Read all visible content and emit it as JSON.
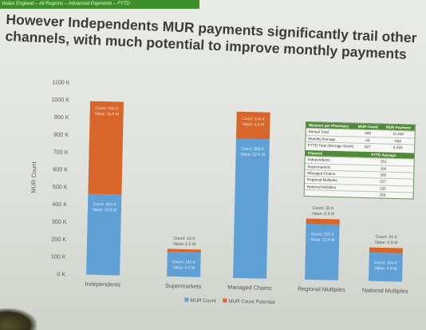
{
  "header": {
    "breadcrumb": "Wales England – All Regions – Advanced Payments – FYTD",
    "title_line1": "However Independents MUR payments significantly trail other",
    "title_line2": "channels, with much potential to improve monthly payments"
  },
  "colors": {
    "mur_count": "#5fa1d6",
    "mur_count_potential": "#d8662a",
    "table_header": "#4f8a36"
  },
  "chart_data": {
    "type": "bar",
    "stacked": true,
    "categories": [
      "Independents",
      "Supermarkets",
      "Managed Chains",
      "Regional Multiples",
      "National Multiples"
    ],
    "ylabel": "MUR Count",
    "ylim": [
      0,
      1100
    ],
    "yticks": [
      0,
      100,
      200,
      300,
      400,
      500,
      600,
      700,
      800,
      900,
      1000,
      1100
    ],
    "ytick_labels": [
      "0 K",
      "100 K",
      "200 K",
      "300 K",
      "400 K",
      "500 K",
      "600 K",
      "700 K",
      "800 K",
      "900 K",
      "1000 K",
      "1100 K"
    ],
    "series": [
      {
        "name": "MUR Count",
        "values": [
          463,
          142,
          800,
          320,
          164
        ],
        "labels": [
          {
            "count": "Count: 463 K",
            "value": "Value: 13.9 M"
          },
          {
            "count": "Count: 142 K",
            "value": "Value: 4.3 M"
          },
          {
            "count": "Count: 800 K",
            "value": "Value: 22 K M"
          },
          {
            "count": "Count: 320 K",
            "value": "Value: 10.4 M"
          },
          {
            "count": "Count: 164 K",
            "value": "Value: 4.9 M"
          }
        ]
      },
      {
        "name": "MUR Count Potential",
        "values": [
          532,
          16,
          154,
          30,
          29
        ],
        "labels": [
          {
            "count": "Count: 532 K",
            "value": "Value: 16.0 M"
          },
          {
            "count": "Count: 16 K",
            "value": "Value: 0.5 M"
          },
          {
            "count": "Count: 154 K",
            "value": "Value: 4.6 M"
          },
          {
            "count": "Count: 30 K",
            "value": "Value: 0.9 M"
          },
          {
            "count": "Count: 29 K",
            "value": "Value: 0.9 M"
          }
        ]
      }
    ],
    "legend": [
      "MUR Count",
      "MUR Count Potential"
    ],
    "legend_position": "bottom-center",
    "grid": false
  },
  "table": {
    "headers": [
      "Measure per Pharmacy",
      "MUR Count",
      "MUR Payment"
    ],
    "rows": [
      [
        "Annual Total",
        "400",
        "11,200"
      ],
      [
        "Monthly Average",
        "33",
        "933"
      ],
      [
        "FYTD Total (Average Stock)",
        "227",
        "6,133"
      ]
    ],
    "channel_header": [
      "Channel",
      "FYTD Average"
    ],
    "channel_rows": [
      [
        "Independents",
        "151"
      ],
      [
        "Supermarkets",
        "289"
      ],
      [
        "Managed Chains",
        "285"
      ],
      [
        "Regional Multiples",
        "227"
      ],
      [
        "National Multiples",
        "235"
      ],
      [
        "",
        "259"
      ]
    ]
  }
}
